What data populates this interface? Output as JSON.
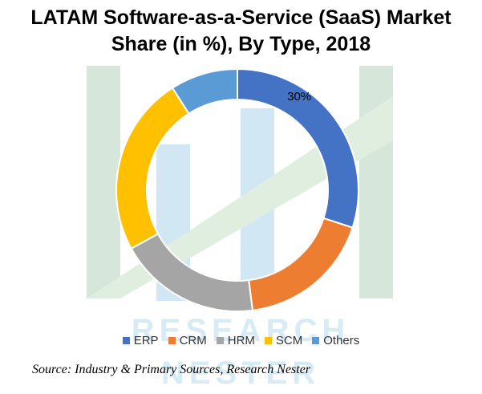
{
  "title_line1": "LATAM Software-as-a-Service (SaaS) Market",
  "title_line2": "Share (in %), By Type, 2018",
  "source": "Source: Industry & Primary Sources, Research Nester",
  "watermark_text": "RESEARCH NESTER",
  "chart_data": {
    "type": "pie",
    "style": "donut",
    "title": "LATAM Software-as-a-Service (SaaS) Market Share (in %), By Type, 2018",
    "categories": [
      "ERP",
      "CRM",
      "HRM",
      "SCM",
      "Others"
    ],
    "values": [
      30,
      18,
      19,
      24,
      9
    ],
    "colors": [
      "#4472C4",
      "#ED7D31",
      "#A5A5A5",
      "#FFC000",
      "#5B9BD5"
    ],
    "data_labels": [
      "30%",
      "",
      "",
      "",
      ""
    ],
    "legend_position": "bottom"
  }
}
